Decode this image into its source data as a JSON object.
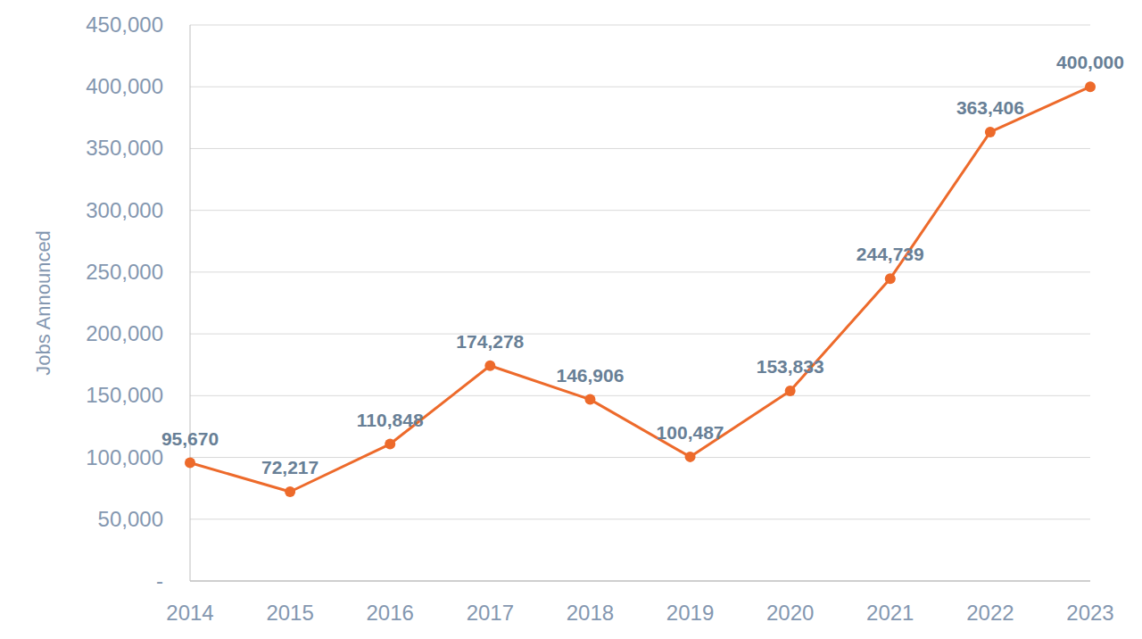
{
  "chart_data": {
    "type": "line",
    "ylabel": "Jobs Announced",
    "categories": [
      "2014",
      "2015",
      "2016",
      "2017",
      "2018",
      "2019",
      "2020",
      "2021",
      "2022",
      "2023"
    ],
    "values": [
      95670,
      72217,
      110848,
      174278,
      146906,
      100487,
      153833,
      244739,
      363406,
      400000
    ],
    "value_labels": [
      "95,670",
      "72,217",
      "110,848",
      "174,278",
      "146,906",
      "100,487",
      "153,833",
      "244,739",
      "363,406",
      "400,000"
    ],
    "color": "#ed6a2b",
    "marker": "circle",
    "line_style": "solid",
    "data_labels": true,
    "grid": true,
    "ylim": [
      0,
      450000
    ],
    "yticks": [
      {
        "value": 0,
        "label": "-"
      },
      {
        "value": 50000,
        "label": "50,000"
      },
      {
        "value": 100000,
        "label": "100,000"
      },
      {
        "value": 150000,
        "label": "150,000"
      },
      {
        "value": 200000,
        "label": "200,000"
      },
      {
        "value": 250000,
        "label": "250,000"
      },
      {
        "value": 300000,
        "label": "300,000"
      },
      {
        "value": 350000,
        "label": "350,000"
      },
      {
        "value": 400000,
        "label": "400,000"
      },
      {
        "value": 450000,
        "label": "450,000"
      }
    ]
  }
}
